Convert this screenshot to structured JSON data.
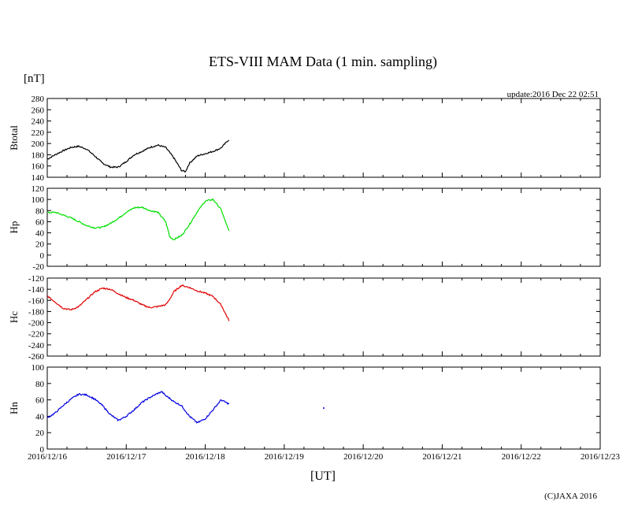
{
  "chart_data": {
    "type": "line",
    "title": "ETS-VIII MAM Data (1 min. sampling)",
    "unit": "[nT]",
    "update": "update:2016 Dec 22 02:51",
    "xlabel": "[UT]",
    "copyright": "(C)JAXA 2016",
    "x_ticks": [
      "2016/12/16",
      "2016/12/17",
      "2016/12/18",
      "2016/12/19",
      "2016/12/20",
      "2016/12/21",
      "2016/12/22",
      "2016/12/23"
    ],
    "xlim": [
      0,
      7
    ],
    "x_units": "days since 2016/12/16 00:00 UT",
    "panels": [
      {
        "name": "Btotal",
        "color": "#000000",
        "ylim": [
          140,
          280
        ],
        "yticks": [
          140,
          160,
          180,
          200,
          220,
          240,
          260,
          280
        ],
        "x": [
          0,
          0.1,
          0.2,
          0.3,
          0.4,
          0.5,
          0.6,
          0.7,
          0.8,
          0.9,
          1.0,
          1.1,
          1.2,
          1.3,
          1.4,
          1.5,
          1.6,
          1.7,
          1.75,
          1.8,
          1.9,
          2.0,
          2.1,
          2.2,
          2.3
        ],
        "y": [
          172,
          180,
          187,
          193,
          195,
          190,
          178,
          165,
          158,
          158,
          168,
          180,
          186,
          193,
          197,
          193,
          175,
          152,
          150,
          165,
          178,
          182,
          186,
          192,
          207
        ]
      },
      {
        "name": "Hp",
        "color": "#00e000",
        "ylim": [
          -20,
          120
        ],
        "yticks": [
          -20,
          0,
          20,
          40,
          60,
          80,
          100,
          120
        ],
        "x": [
          0,
          0.1,
          0.2,
          0.3,
          0.4,
          0.5,
          0.6,
          0.7,
          0.8,
          0.9,
          1.0,
          1.1,
          1.2,
          1.3,
          1.4,
          1.5,
          1.55,
          1.6,
          1.7,
          1.8,
          1.9,
          2.0,
          2.1,
          2.2,
          2.3
        ],
        "y": [
          76,
          77,
          72,
          67,
          60,
          53,
          49,
          50,
          57,
          66,
          77,
          85,
          86,
          80,
          77,
          60,
          33,
          28,
          35,
          55,
          78,
          97,
          100,
          82,
          43
        ]
      },
      {
        "name": "Hc",
        "color": "#e00000",
        "ylim": [
          -260,
          -120
        ],
        "yticks": [
          -260,
          -240,
          -220,
          -200,
          -180,
          -160,
          -140,
          -120
        ],
        "x": [
          0,
          0.1,
          0.2,
          0.3,
          0.4,
          0.5,
          0.6,
          0.7,
          0.8,
          0.9,
          1.0,
          1.1,
          1.2,
          1.3,
          1.4,
          1.5,
          1.55,
          1.6,
          1.7,
          1.8,
          1.9,
          2.0,
          2.1,
          2.2,
          2.3
        ],
        "y": [
          -152,
          -163,
          -174,
          -177,
          -171,
          -158,
          -145,
          -138,
          -140,
          -148,
          -155,
          -160,
          -168,
          -173,
          -171,
          -168,
          -158,
          -145,
          -133,
          -137,
          -143,
          -147,
          -153,
          -168,
          -196
        ]
      },
      {
        "name": "Hn",
        "color": "#0000e0",
        "ylim": [
          0,
          100
        ],
        "yticks": [
          0,
          20,
          40,
          60,
          80,
          100
        ],
        "x": [
          0,
          0.1,
          0.2,
          0.3,
          0.4,
          0.5,
          0.6,
          0.7,
          0.8,
          0.9,
          1.0,
          1.1,
          1.2,
          1.3,
          1.4,
          1.45,
          1.5,
          1.55,
          1.6,
          1.7,
          1.8,
          1.9,
          2.0,
          2.1,
          2.2,
          2.3
        ],
        "y": [
          38,
          44,
          53,
          61,
          67,
          66,
          61,
          53,
          42,
          35,
          40,
          48,
          57,
          63,
          68,
          70,
          65,
          62,
          58,
          53,
          40,
          32,
          37,
          48,
          60,
          55
        ],
        "extra_points": [
          {
            "x": 3.5,
            "y": 50
          }
        ]
      }
    ]
  }
}
